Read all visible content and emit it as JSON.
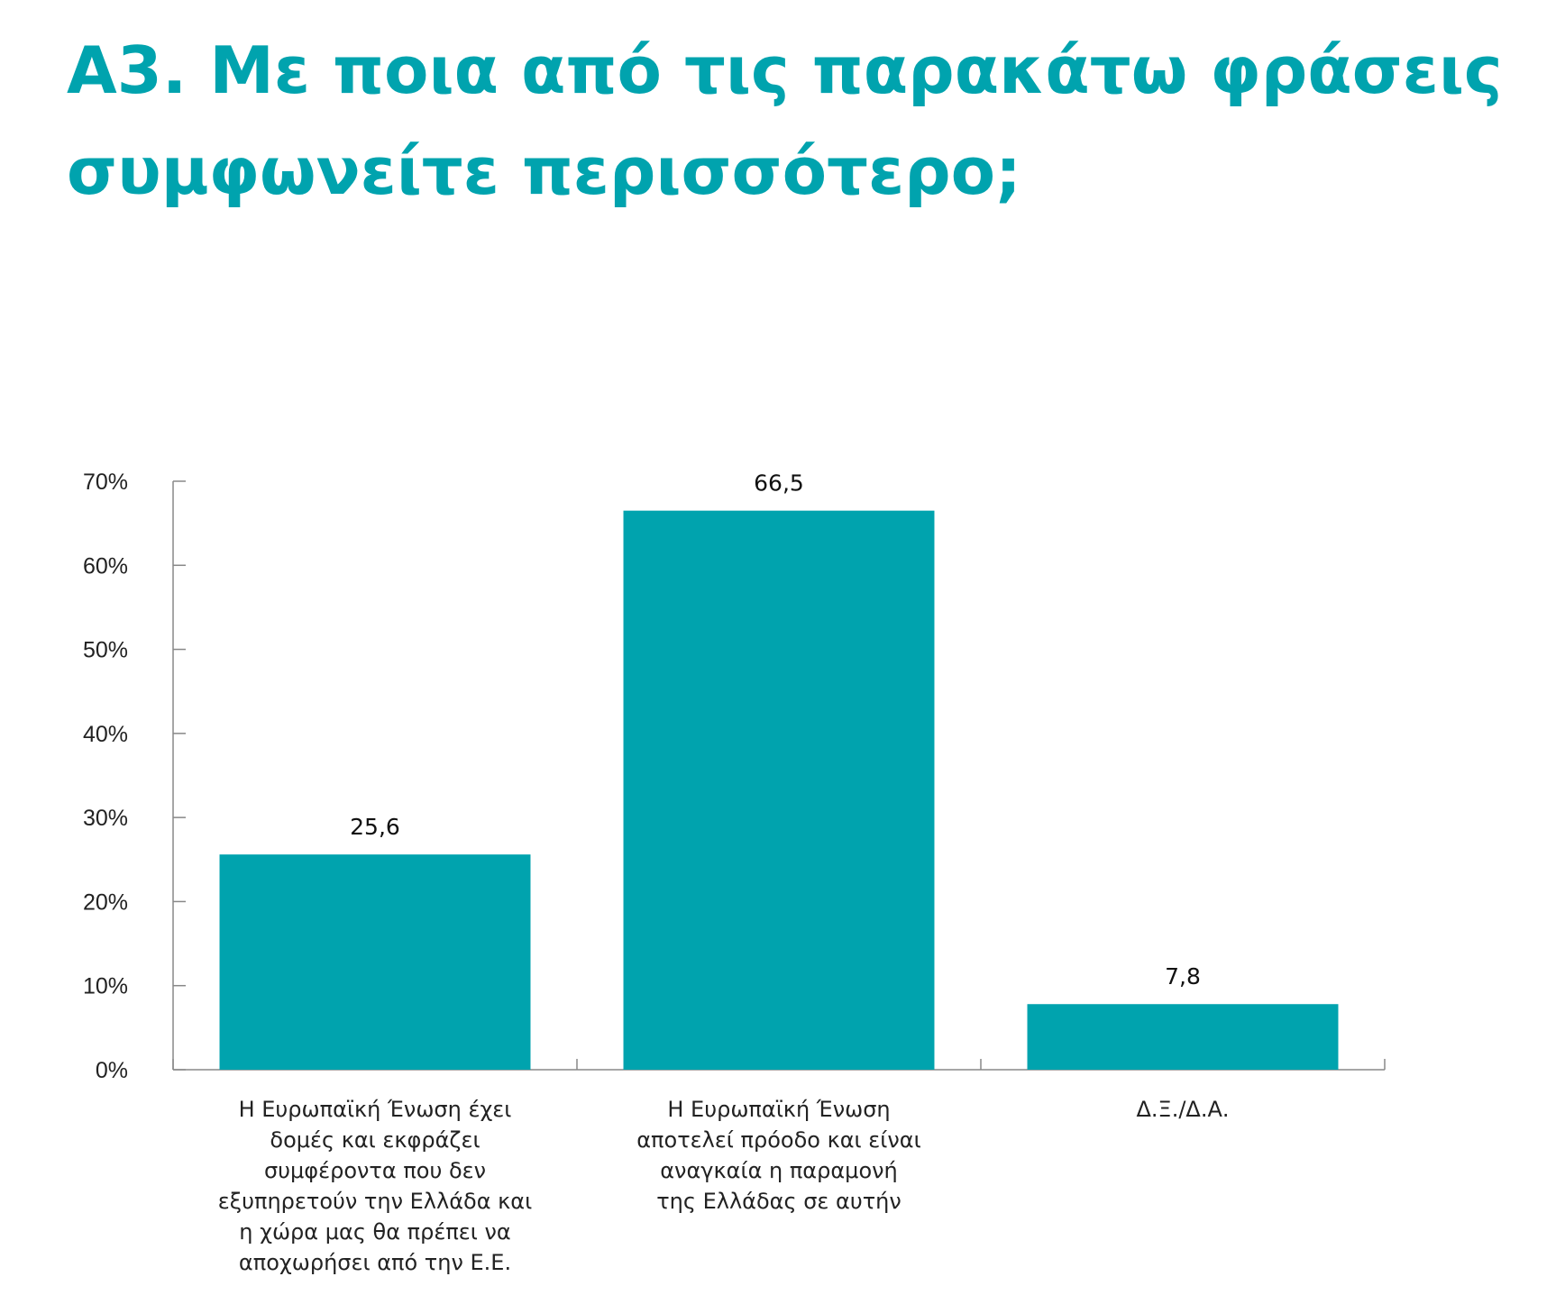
{
  "chart_data": {
    "type": "bar",
    "title": "Α3. Με ποια από τις παρακάτω φράσεις συμφωνείτε περισσότερο;",
    "categories": [
      [
        "Η Ευρωπαϊκή Ένωση έχει",
        "δομές και εκφράζει",
        "συμφέροντα που δεν",
        "εξυπηρετούν την Ελλάδα και",
        "η χώρα μας θα πρέπει να",
        "αποχωρήσει από την Ε.Ε."
      ],
      [
        "Η Ευρωπαϊκή Ένωση",
        "αποτελεί πρόοδο και είναι",
        "αναγκαία η παραμονή",
        "της Ελλάδας σε αυτήν"
      ],
      [
        "Δ.Ξ./Δ.Α."
      ]
    ],
    "values": [
      25.6,
      66.5,
      7.8
    ],
    "value_labels": [
      "25,6",
      "66,5",
      "7,8"
    ],
    "ylim": [
      0,
      70
    ],
    "yticks": [
      0,
      10,
      20,
      30,
      40,
      50,
      60,
      70
    ],
    "ytick_labels": [
      "0%",
      "10%",
      "20%",
      "30%",
      "40%",
      "50%",
      "60%",
      "70%"
    ],
    "grid": false,
    "bar_color": "#00a3ae",
    "title_color": "#00a3ae",
    "axis_color": "#888888"
  }
}
